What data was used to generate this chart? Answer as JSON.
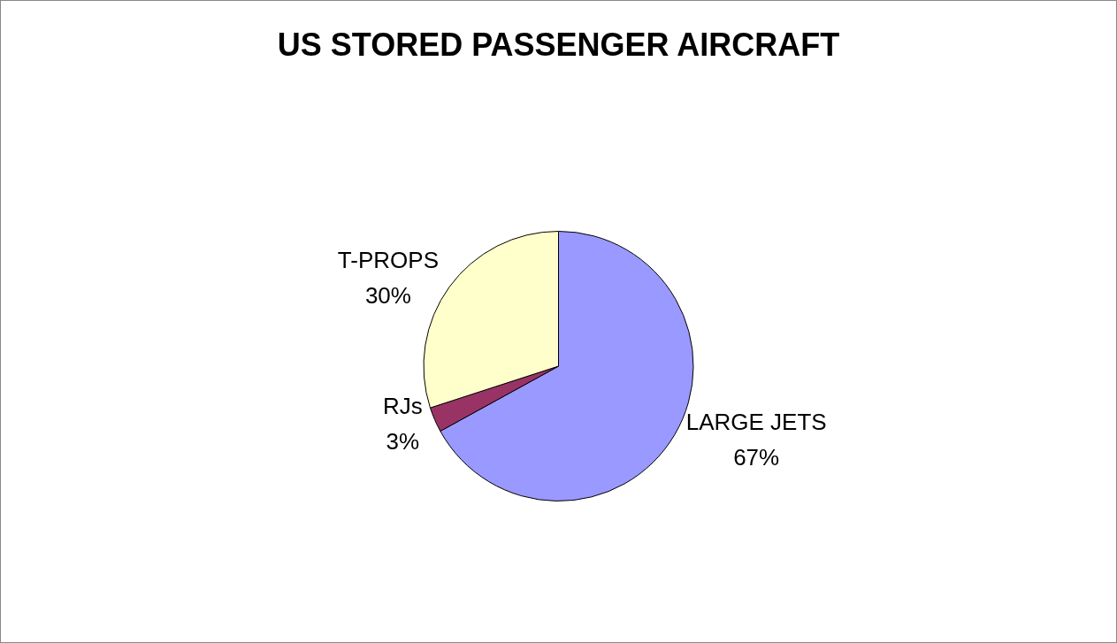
{
  "chart_data": {
    "type": "pie",
    "title": "US STORED PASSENGER AIRCRAFT",
    "categories": [
      "LARGE JETS",
      "RJs",
      "T-PROPS"
    ],
    "values": [
      67,
      3,
      30
    ],
    "colors": [
      "#9999ff",
      "#993366",
      "#ffffcc"
    ],
    "value_labels": [
      "67%",
      "3%",
      "30%"
    ],
    "legend": false
  }
}
